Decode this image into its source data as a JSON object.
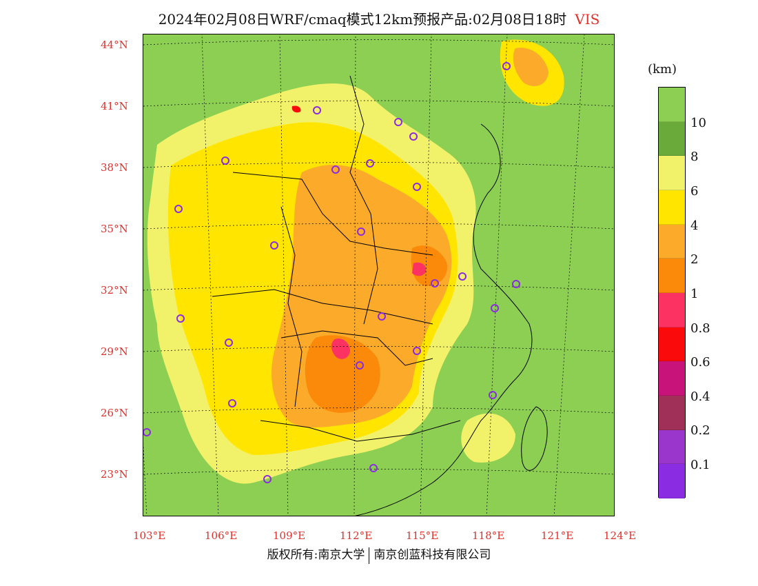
{
  "title": {
    "main": "2024年02月08日WRF/cmaq模式12km预报产品:02月08日18时",
    "variable": "VIS"
  },
  "axes": {
    "lat_labels": [
      "44°N",
      "41°N",
      "38°N",
      "35°N",
      "32°N",
      "29°N",
      "26°N",
      "23°N"
    ],
    "lon_labels": [
      "103°E",
      "106°E",
      "109°E",
      "112°E",
      "115°E",
      "118°E",
      "121°E",
      "124°E"
    ]
  },
  "legend": {
    "unit": "(km)",
    "labels": [
      "10",
      "8",
      "6",
      "4",
      "2",
      "1",
      "0.8",
      "0.6",
      "0.4",
      "0.2",
      "0.1"
    ],
    "colors": [
      "#8ccf53",
      "#6aaa3a",
      "#f2f26a",
      "#ffe500",
      "#fbaa2a",
      "#fb8a0a",
      "#fb3262",
      "#fa0a0a",
      "#c8147a",
      "#a03058",
      "#9a36cc",
      "#8a2ce2"
    ]
  },
  "colors": {
    "background": "#8ccf53",
    "site_marker": "#8a2be2",
    "label": "#e0302c"
  },
  "footer": {
    "left": "版权所有:南京大学",
    "right": "南京创蓝科技有限公司"
  }
}
